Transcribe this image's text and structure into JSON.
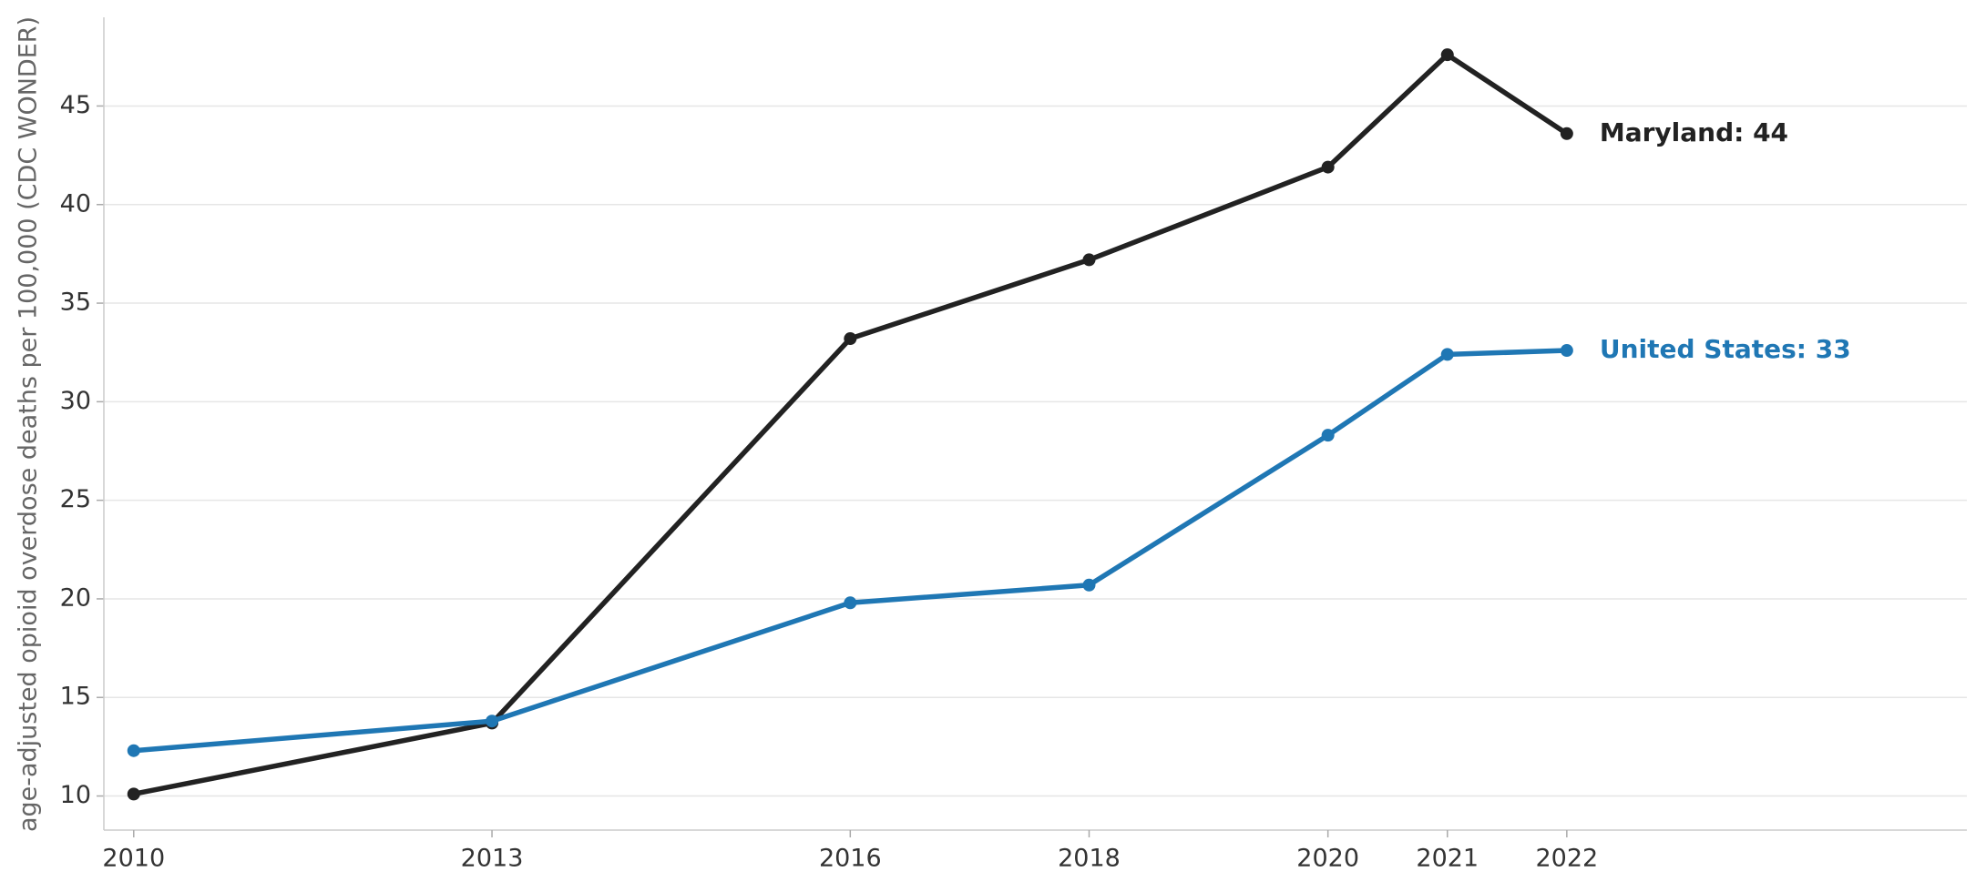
{
  "chart_data": {
    "type": "line",
    "y_label": "age-adjusted opioid overdose deaths per 100,000 (CDC WONDER)",
    "x": [
      2010,
      2013,
      2016,
      2018,
      2020,
      2021,
      2022
    ],
    "series": [
      {
        "name": "Maryland: 44",
        "color": "#222222",
        "values": [
          10.1,
          13.7,
          33.2,
          37.2,
          41.9,
          47.6,
          43.6
        ]
      },
      {
        "name": "United States: 33",
        "color": "#1f77b4",
        "values": [
          12.3,
          13.8,
          19.8,
          20.7,
          28.3,
          32.4,
          32.6
        ]
      }
    ],
    "xlim": [
      2009.75,
      2025.35
    ],
    "xticks": [
      2010,
      2013,
      2016,
      2018,
      2020,
      2021,
      2022
    ],
    "ylim": [
      8.27,
      49.5
    ],
    "yticks": [
      10,
      15,
      20,
      25,
      30,
      35,
      40,
      45
    ],
    "grid": true
  }
}
